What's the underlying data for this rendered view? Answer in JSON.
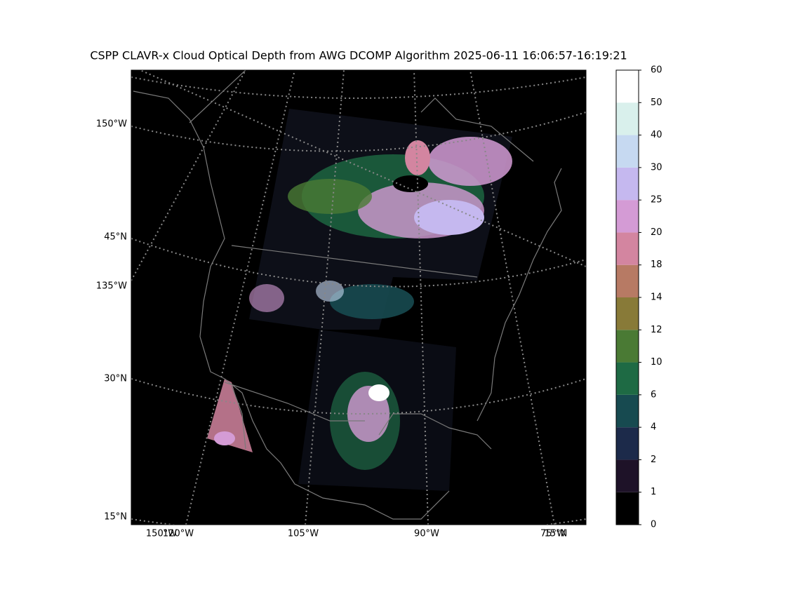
{
  "title": "CSPP CLAVR-x Cloud Optical Depth from AWG DCOMP Algorithm 2025-06-11 16:06:57-16:19:21",
  "map": {
    "left_labels": [
      "150°W",
      "45°N",
      "135°W",
      "30°N",
      "15°N"
    ],
    "bottom_labels": [
      "150°W",
      "120°W",
      "105°W",
      "90°W",
      "75°W",
      "15°N"
    ]
  },
  "colorbar": {
    "ticks": [
      0,
      1,
      2,
      4,
      6,
      10,
      12,
      14,
      18,
      20,
      25,
      30,
      40,
      50,
      60
    ],
    "colors": [
      "#000000",
      "#1e1228",
      "#1c2a4a",
      "#174a50",
      "#1e6a44",
      "#4a7a34",
      "#887a38",
      "#b77a64",
      "#d385a0",
      "#d49bd5",
      "#c5b8ef",
      "#c6d9f1",
      "#d9f0ec",
      "#ffffff"
    ]
  }
}
